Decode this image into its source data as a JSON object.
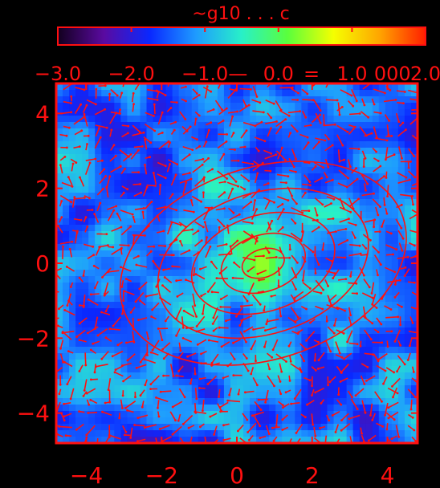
{
  "chart_data": {
    "type": "heatmap",
    "title": "~g10 . . . c",
    "colorbar": {
      "orientation": "horizontal",
      "location": "top",
      "tick_labels": [
        "−3.0",
        "−2.0",
        "−1.0",
        "0.0",
        "1.0",
        "2.0"
      ],
      "tick_values": [
        -3.0,
        -2.0,
        -1.0,
        0.0,
        1.0,
        2.0
      ],
      "overlapping_labels": [
        "—",
        "=",
        "000"
      ],
      "range": [
        -3.0,
        2.0
      ],
      "colormap": [
        "#12001e",
        "#5a0aa0",
        "#0a28ff",
        "#1e9bff",
        "#28f0c8",
        "#5aff3c",
        "#f5ff00",
        "#ffa500",
        "#ff1e00"
      ]
    },
    "x_tick_labels": [
      "−4",
      "−2",
      "0",
      "2",
      "4"
    ],
    "x_tick_values": [
      -4,
      -2,
      0,
      2,
      4
    ],
    "y_tick_labels": [
      "4",
      "2",
      "0",
      "−2",
      "−4"
    ],
    "y_tick_values": [
      4,
      2,
      0,
      -2,
      -4
    ],
    "xlim": [
      -4.8,
      4.8
    ],
    "ylim": [
      -4.8,
      4.8
    ],
    "background_map_value": -1.4,
    "peak_center": [
      0.7,
      0.0
    ],
    "contour_radii": [
      0.5,
      1.0,
      1.7,
      2.5,
      3.4
    ],
    "overlay": "red velocity vectors and contour ellipses",
    "colors": {
      "annotation": "#ff1010",
      "background": "#000000"
    }
  }
}
